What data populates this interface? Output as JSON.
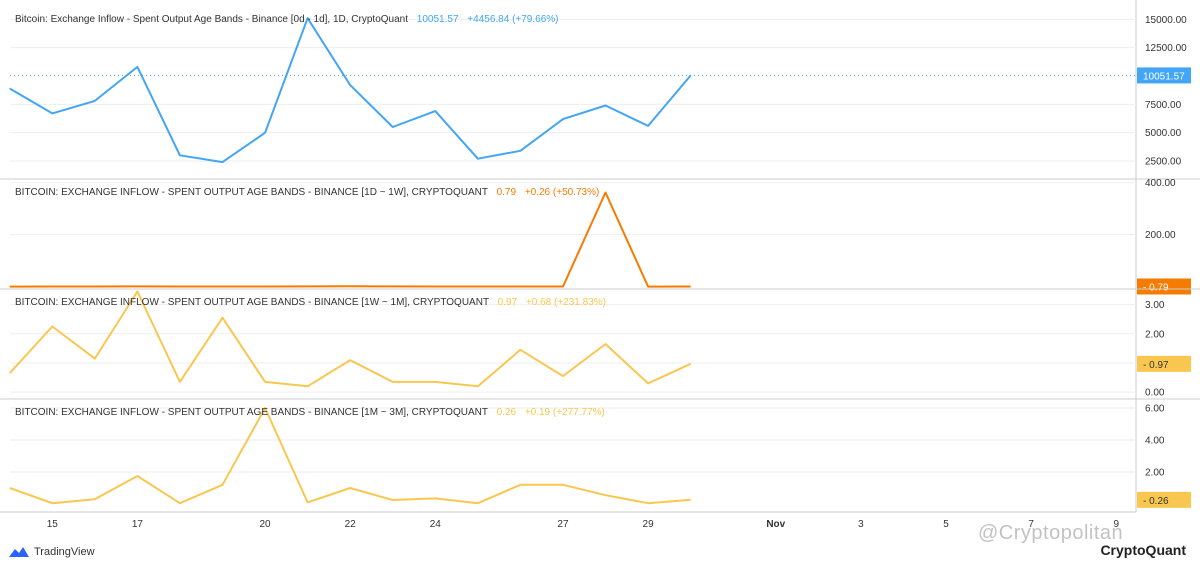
{
  "colors": {
    "blue": "#42a5f5",
    "orange": "#f57c00",
    "yellow": "#f9c74f",
    "grid": "#eeeeee",
    "border": "#cccccc",
    "axis_text": "#333333"
  },
  "x_axis": {
    "ticks": [
      "15",
      "17",
      "20",
      "22",
      "24",
      "27",
      "29",
      "Nov",
      "3",
      "5",
      "7",
      "9"
    ]
  },
  "chart_data": [
    {
      "type": "line",
      "title": "Bitcoin: Exchange Inflow - Spent Output Age Bands - Binance [0d - 1d], 1D, CryptoQuant",
      "last_label": "10051.57",
      "change_label": "+4456.84 (+79.66%)",
      "color": "#42a5f5",
      "ylim": [
        1000,
        16000
      ],
      "y_ticks": [
        "15000.00",
        "12500.00",
        "7500.00",
        "5000.00",
        "2500.00"
      ],
      "y_tick_values": [
        15000,
        12500,
        7500,
        5000,
        2500
      ],
      "x": [
        14,
        15,
        16,
        17,
        18,
        19,
        20,
        21,
        22,
        23,
        24,
        25,
        26,
        27,
        28,
        29,
        30
      ],
      "values": [
        8900,
        6700,
        7800,
        10800,
        3000,
        2400,
        5000,
        15100,
        9200,
        5500,
        6900,
        2700,
        3400,
        6200,
        7400,
        5600,
        10051.57
      ],
      "last_value": 10051.57
    },
    {
      "type": "line",
      "title": "BITCOIN: EXCHANGE INFLOW - SPENT OUTPUT AGE BANDS - BINANCE [1D ~ 1W], CRYPTOQUANT",
      "last_label": "0.79",
      "change_label": "+0.26 (+50.73%)",
      "color": "#f57c00",
      "ylim": [
        -5,
        410
      ],
      "y_ticks": [
        "400.00",
        "200.00"
      ],
      "y_tick_values": [
        400,
        200
      ],
      "x": [
        14,
        15,
        16,
        17,
        18,
        19,
        20,
        21,
        22,
        23,
        24,
        25,
        26,
        27,
        28,
        29,
        30
      ],
      "values": [
        0.5,
        0.6,
        0.8,
        1.0,
        0.7,
        0.6,
        0.9,
        1.2,
        1.5,
        1.1,
        0.8,
        0.6,
        0.7,
        0.9,
        362,
        0.53,
        0.79
      ],
      "last_value": 0.79
    },
    {
      "type": "line",
      "title": "BITCOIN: EXCHANGE INFLOW - SPENT OUTPUT AGE BANDS - BINANCE [1W ~ 1M], CRYPTOQUANT",
      "last_label": "0.97",
      "change_label": "+0.68 (+231.83%)",
      "color": "#f9c74f",
      "ylim": [
        -0.2,
        3.5
      ],
      "y_ticks": [
        "3.00",
        "2.00",
        "1.00",
        "0.00"
      ],
      "y_tick_values": [
        3,
        2,
        1,
        0
      ],
      "x": [
        14,
        15,
        16,
        17,
        18,
        19,
        20,
        21,
        22,
        23,
        24,
        25,
        26,
        27,
        28,
        29,
        30
      ],
      "values": [
        0.65,
        2.25,
        1.15,
        3.45,
        0.35,
        2.55,
        0.35,
        0.2,
        1.1,
        0.35,
        0.35,
        0.2,
        1.45,
        0.55,
        1.65,
        0.3,
        0.97
      ],
      "last_value": 0.97
    },
    {
      "type": "line",
      "title": "BITCOIN: EXCHANGE INFLOW - SPENT OUTPUT AGE BANDS - BINANCE [1M ~ 3M], CRYPTOQUANT",
      "last_label": "0.26",
      "change_label": "+0.19 (+277.77%)",
      "color": "#f9c74f",
      "ylim": [
        -0.5,
        6.5
      ],
      "y_ticks": [
        "6.00",
        "4.00",
        "2.00"
      ],
      "y_tick_values": [
        6,
        4,
        2
      ],
      "x": [
        14,
        15,
        16,
        17,
        18,
        19,
        20,
        21,
        22,
        23,
        24,
        25,
        26,
        27,
        28,
        29,
        30
      ],
      "values": [
        1.0,
        0.05,
        0.3,
        1.75,
        0.05,
        1.2,
        6.0,
        0.1,
        1.0,
        0.25,
        0.35,
        0.05,
        1.2,
        1.2,
        0.55,
        0.05,
        0.26
      ],
      "last_value": 0.26
    }
  ],
  "footer": {
    "tradingview": "TradingView",
    "cryptoquant": "CryptoQuant",
    "watermark": "@Cryptopolitan"
  }
}
